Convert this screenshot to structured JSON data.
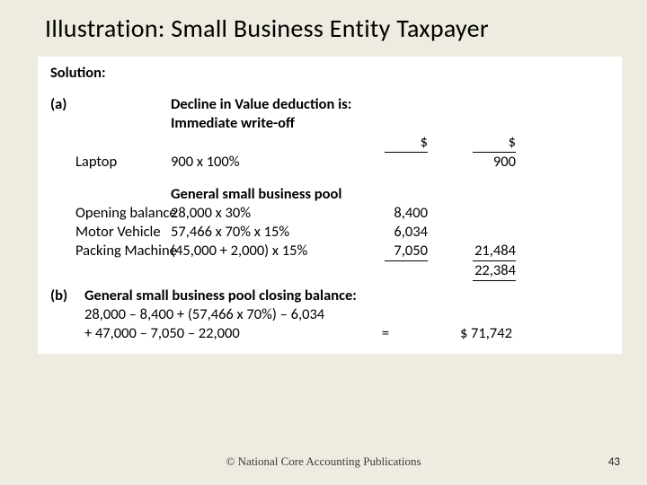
{
  "slide": {
    "title": "Illustration: Small Business Entity Taxpayer",
    "page_number": "43",
    "footer": "© National Core Accounting Publications",
    "background_color": "#eeece1",
    "content_bg": "#ffffff"
  },
  "solution_label": "Solution:",
  "part_a": {
    "label": "(a)",
    "heading1": "Decline in Value deduction is:",
    "heading2": "Immediate write-off",
    "col_header_left": "$",
    "col_header_right": "$",
    "laptop": {
      "name": "Laptop",
      "calc": "900 x 100%",
      "value": "900"
    },
    "pool_heading": "General small business pool",
    "rows": [
      {
        "name": "Opening balance",
        "calc": "28,000 x 30%",
        "sub": "8,400"
      },
      {
        "name": "Motor Vehicle",
        "calc": "57,466 x 70% x 15%",
        "sub": "6,034"
      },
      {
        "name": "Packing Machine",
        "calc": "(45,000 + 2,000) x 15%",
        "sub": "7,050"
      }
    ],
    "subtotal": "21,484",
    "total": "22,384"
  },
  "part_b": {
    "label": "(b)",
    "heading": "General small business pool closing balance:",
    "line1": "28,000 – 8,400 + (57,466 x 70%) – 6,034",
    "line2": "+ 47,000 – 7,050 – 22,000",
    "equals": "=",
    "result": "$ 71,742"
  }
}
